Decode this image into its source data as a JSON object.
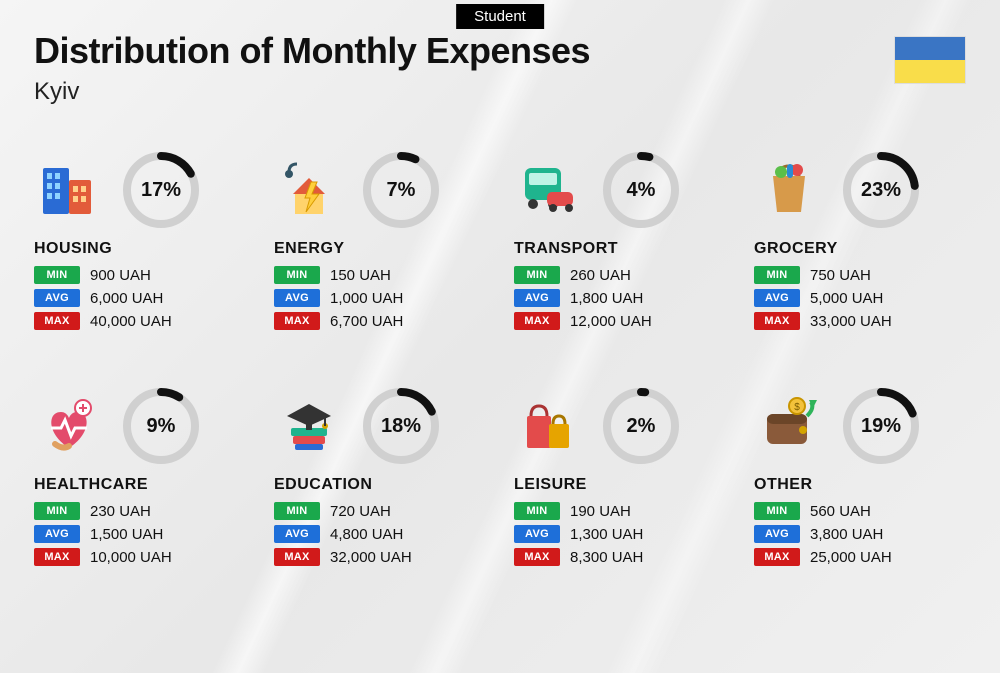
{
  "tag": "Student",
  "title": "Distribution of Monthly Expenses",
  "subtitle": "Kyiv",
  "flag": {
    "top_color": "#3a75c4",
    "bottom_color": "#f9dd4a"
  },
  "currency": "UAH",
  "colors": {
    "min_badge": "#1aa84c",
    "avg_badge": "#1e6fd9",
    "max_badge": "#d11a1a",
    "donut_bg": "#d0d0d0",
    "donut_fg": "#111111"
  },
  "badge_labels": {
    "min": "MIN",
    "avg": "AVG",
    "max": "MAX"
  },
  "donut": {
    "radius": 34,
    "stroke_width": 8
  },
  "categories": [
    {
      "key": "housing",
      "name": "HOUSING",
      "percent": 17,
      "min": "900 UAH",
      "avg": "6,000 UAH",
      "max": "40,000 UAH",
      "icon": "housing"
    },
    {
      "key": "energy",
      "name": "ENERGY",
      "percent": 7,
      "min": "150 UAH",
      "avg": "1,000 UAH",
      "max": "6,700 UAH",
      "icon": "energy"
    },
    {
      "key": "transport",
      "name": "TRANSPORT",
      "percent": 4,
      "min": "260 UAH",
      "avg": "1,800 UAH",
      "max": "12,000 UAH",
      "icon": "transport"
    },
    {
      "key": "grocery",
      "name": "GROCERY",
      "percent": 23,
      "min": "750 UAH",
      "avg": "5,000 UAH",
      "max": "33,000 UAH",
      "icon": "grocery"
    },
    {
      "key": "healthcare",
      "name": "HEALTHCARE",
      "percent": 9,
      "min": "230 UAH",
      "avg": "1,500 UAH",
      "max": "10,000 UAH",
      "icon": "healthcare"
    },
    {
      "key": "education",
      "name": "EDUCATION",
      "percent": 18,
      "min": "720 UAH",
      "avg": "4,800 UAH",
      "max": "32,000 UAH",
      "icon": "education"
    },
    {
      "key": "leisure",
      "name": "LEISURE",
      "percent": 2,
      "min": "190 UAH",
      "avg": "1,300 UAH",
      "max": "8,300 UAH",
      "icon": "leisure"
    },
    {
      "key": "other",
      "name": "OTHER",
      "percent": 19,
      "min": "560 UAH",
      "avg": "3,800 UAH",
      "max": "25,000 UAH",
      "icon": "other"
    }
  ]
}
